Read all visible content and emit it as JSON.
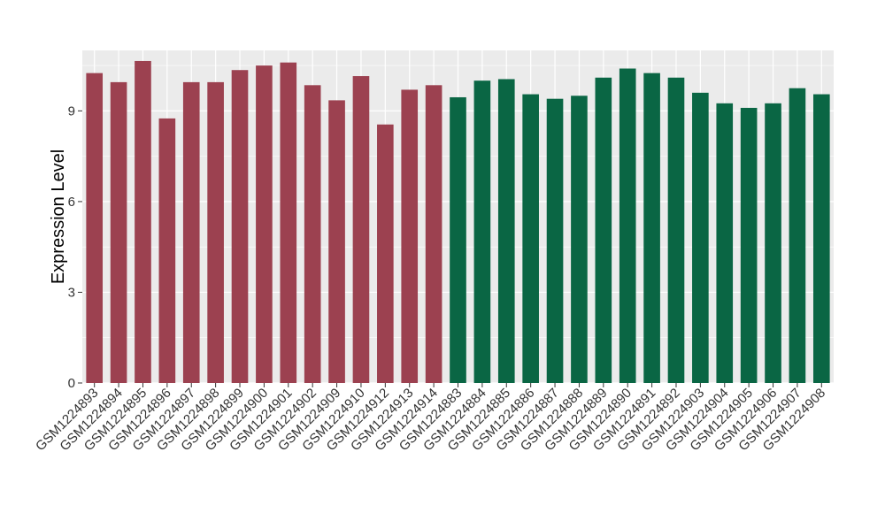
{
  "chart_data": {
    "type": "bar",
    "title": "",
    "xlabel": "",
    "ylabel": "Expression Level",
    "ylim": [
      0,
      11.0
    ],
    "yticks": [
      "0",
      "3",
      "6",
      "9"
    ],
    "grid": true,
    "legend": "none",
    "categories": [
      "GSM1224893",
      "GSM1224894",
      "GSM1224895",
      "GSM1224896",
      "GSM1224897",
      "GSM1224898",
      "GSM1224899",
      "GSM1224900",
      "GSM1224901",
      "GSM1224902",
      "GSM1224909",
      "GSM1224910",
      "GSM1224912",
      "GSM1224913",
      "GSM1224914",
      "GSM1224883",
      "GSM1224884",
      "GSM1224885",
      "GSM1224886",
      "GSM1224887",
      "GSM1224888",
      "GSM1224889",
      "GSM1224890",
      "GSM1224891",
      "GSM1224892",
      "GSM1224903",
      "GSM1224904",
      "GSM1224905",
      "GSM1224906",
      "GSM1224907",
      "GSM1224908"
    ],
    "values": [
      10.25,
      9.95,
      10.65,
      8.75,
      9.95,
      9.95,
      10.35,
      10.5,
      10.6,
      9.85,
      9.35,
      10.15,
      8.55,
      9.7,
      9.85,
      9.45,
      10.0,
      10.05,
      9.55,
      9.4,
      9.5,
      10.1,
      10.4,
      10.25,
      10.1,
      9.6,
      9.25,
      9.1,
      9.25,
      9.75,
      9.55
    ],
    "group_colors": [
      "#9c4150",
      "#0a6644"
    ],
    "groups": [
      0,
      0,
      0,
      0,
      0,
      0,
      0,
      0,
      0,
      0,
      0,
      0,
      0,
      0,
      0,
      1,
      1,
      1,
      1,
      1,
      1,
      1,
      1,
      1,
      1,
      1,
      1,
      1,
      1,
      1,
      1
    ],
    "panel_background": "#ebebeb",
    "grid_color": "#ffffff"
  }
}
